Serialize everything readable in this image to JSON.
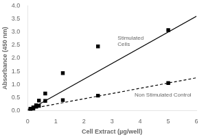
{
  "chart_data": {
    "type": "scatter",
    "xlabel": "Cell Extract (µg/well)",
    "ylabel": "Absorbance (450 nm)",
    "series": [
      {
        "x": [
          0.0,
          6.0
        ],
        "values": [
          0.0,
          3.6
        ],
        "color": "black",
        "marker": "none",
        "line_style": "solid"
      },
      {
        "x": [
          0.1,
          0.2,
          0.3,
          0.4,
          0.625,
          1.25,
          2.5,
          5.0
        ],
        "values": [
          0.07,
          0.12,
          0.2,
          0.38,
          0.65,
          1.43,
          2.45,
          3.07
        ],
        "color": "black",
        "marker": "square",
        "line_style": "none"
      },
      {
        "x": [
          0.0,
          6.0
        ],
        "values": [
          0.05,
          1.25
        ],
        "color": "black",
        "marker": "none",
        "line_style": "dashed"
      },
      {
        "x": [
          0.1,
          0.2,
          0.3,
          0.4,
          0.625,
          1.25,
          2.5,
          5.0
        ],
        "values": [
          0.05,
          0.07,
          0.15,
          0.18,
          0.37,
          0.4,
          0.57,
          1.05
        ],
        "color": "black",
        "marker": "square",
        "line_style": "none"
      }
    ],
    "annotations": [
      {
        "text": "Stimulated\nCells",
        "x": 3.2,
        "y": 2.65
      },
      {
        "text": "Non Stimulated Control",
        "x": 3.8,
        "y": 0.58
      }
    ],
    "xlim": [
      0,
      6
    ],
    "ylim": [
      0,
      4
    ],
    "xticks": [
      0,
      1,
      2,
      3,
      4,
      5,
      6
    ],
    "yticks": [
      {
        "value": 0,
        "label": "0.0"
      },
      0.5,
      {
        "value": 1,
        "label": "1.0"
      },
      1.5,
      {
        "value": 2,
        "label": "2.0"
      },
      2.5,
      {
        "value": 3,
        "label": "3.0"
      },
      3.5,
      {
        "value": 4,
        "label": "4.0"
      }
    ],
    "grid": false
  }
}
